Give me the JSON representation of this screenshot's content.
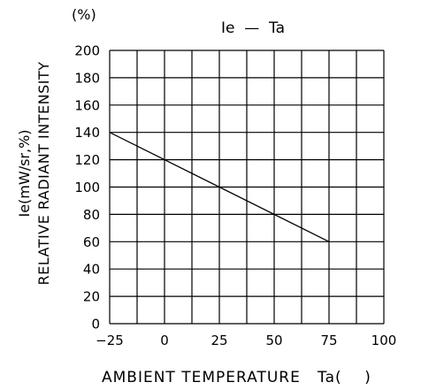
{
  "chart_data": {
    "type": "line",
    "title": "Ie  —  Ta",
    "y_unit_label": "(%)",
    "xlabel": "AMBIENT TEMPERATURE   Ta(    )",
    "ylabel_line1": "RELATIVE RADIANT INTENSITY",
    "ylabel_line2": "Ie(mW/sr,%)",
    "xlim": [
      -25,
      100
    ],
    "ylim": [
      0,
      200
    ],
    "x_ticks": [
      -25,
      0,
      25,
      50,
      75,
      100
    ],
    "y_ticks": [
      0,
      20,
      40,
      60,
      80,
      100,
      120,
      140,
      160,
      180,
      200
    ],
    "x_gridlines": [
      -25,
      -12.5,
      0,
      12.5,
      25,
      37.5,
      50,
      62.5,
      75,
      87.5,
      100
    ],
    "grid": true,
    "series": [
      {
        "x": [
          -25,
          75
        ],
        "y": [
          140,
          60
        ]
      }
    ]
  }
}
